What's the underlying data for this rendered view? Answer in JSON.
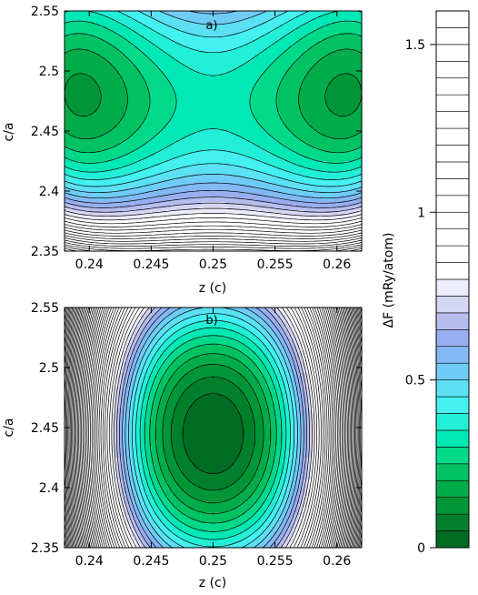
{
  "chart_data": [
    {
      "type": "heatmap",
      "panel_label": "a)",
      "xlabel": "z (c)",
      "ylabel": "c/a",
      "xlim": [
        0.238,
        0.262
      ],
      "ylim": [
        2.35,
        2.55
      ],
      "x_ticks": [
        "0.24",
        "0.245",
        "0.25",
        "0.255",
        "0.26"
      ],
      "y_ticks": [
        "2.35",
        "2.4",
        "2.45",
        "2.5",
        "2.55"
      ],
      "minima": [
        {
          "x": 0.2415,
          "y": 2.47,
          "value": 0.0
        },
        {
          "x": 0.2585,
          "y": 2.47,
          "value": 0.0
        }
      ],
      "saddle": {
        "x": 0.25,
        "y": 2.45,
        "value": 0.35
      }
    },
    {
      "type": "heatmap",
      "panel_label": "b)",
      "xlabel": "z (c)",
      "ylabel": "c/a",
      "xlim": [
        0.238,
        0.262
      ],
      "ylim": [
        2.35,
        2.55
      ],
      "x_ticks": [
        "0.24",
        "0.245",
        "0.25",
        "0.255",
        "0.26"
      ],
      "y_ticks": [
        "2.35",
        "2.4",
        "2.45",
        "2.5",
        "2.55"
      ],
      "minima": [
        {
          "x": 0.25,
          "y": 2.45,
          "value": 0.0
        }
      ]
    }
  ],
  "colorbar": {
    "label": "ΔF (mRy/atom)",
    "range": [
      0,
      1.6
    ],
    "ticks": [
      "0",
      "0.5",
      "1",
      "1.5"
    ],
    "contour_step": 0.05,
    "colors": [
      "#006b22",
      "#007f2c",
      "#009638",
      "#00ac49",
      "#00c263",
      "#00d88a",
      "#00e8b4",
      "#22f0d6",
      "#44f0f0",
      "#5ce0f4",
      "#6fccf6",
      "#82b8f4",
      "#98aef0",
      "#b6bcee",
      "#d4d6f2",
      "#ececfa",
      "#ffffff"
    ]
  }
}
